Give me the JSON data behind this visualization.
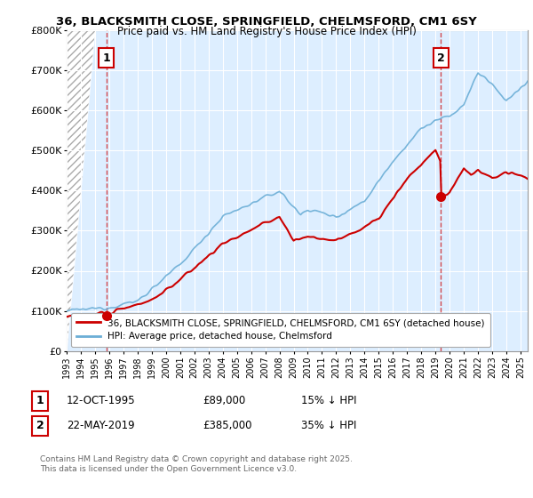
{
  "title1": "36, BLACKSMITH CLOSE, SPRINGFIELD, CHELMSFORD, CM1 6SY",
  "title2": "Price paid vs. HM Land Registry's House Price Index (HPI)",
  "ylabel_ticks": [
    "£0",
    "£100K",
    "£200K",
    "£300K",
    "£400K",
    "£500K",
    "£600K",
    "£700K",
    "£800K"
  ],
  "ylim": [
    0,
    800000
  ],
  "xlim_start": 1993,
  "xlim_end": 2025.5,
  "purchase1_x": 1995.79,
  "purchase1_y": 89000,
  "purchase2_x": 2019.39,
  "purchase2_y": 385000,
  "purchase1_label": "1",
  "purchase2_label": "2",
  "hpi_color": "#6baed6",
  "property_color": "#cc0000",
  "vline_color": "#cc0000",
  "bg_color": "#ddeeff",
  "grid_color": "#b0c4d8",
  "legend_property": "36, BLACKSMITH CLOSE, SPRINGFIELD, CHELMSFORD, CM1 6SY (detached house)",
  "legend_hpi": "HPI: Average price, detached house, Chelmsford",
  "anno1_date": "12-OCT-1995",
  "anno1_price": "£89,000",
  "anno1_hpi": "15% ↓ HPI",
  "anno2_date": "22-MAY-2019",
  "anno2_price": "£385,000",
  "anno2_hpi": "35% ↓ HPI",
  "footnote": "Contains HM Land Registry data © Crown copyright and database right 2025.\nThis data is licensed under the Open Government Licence v3.0.",
  "font_family": "DejaVu Sans"
}
